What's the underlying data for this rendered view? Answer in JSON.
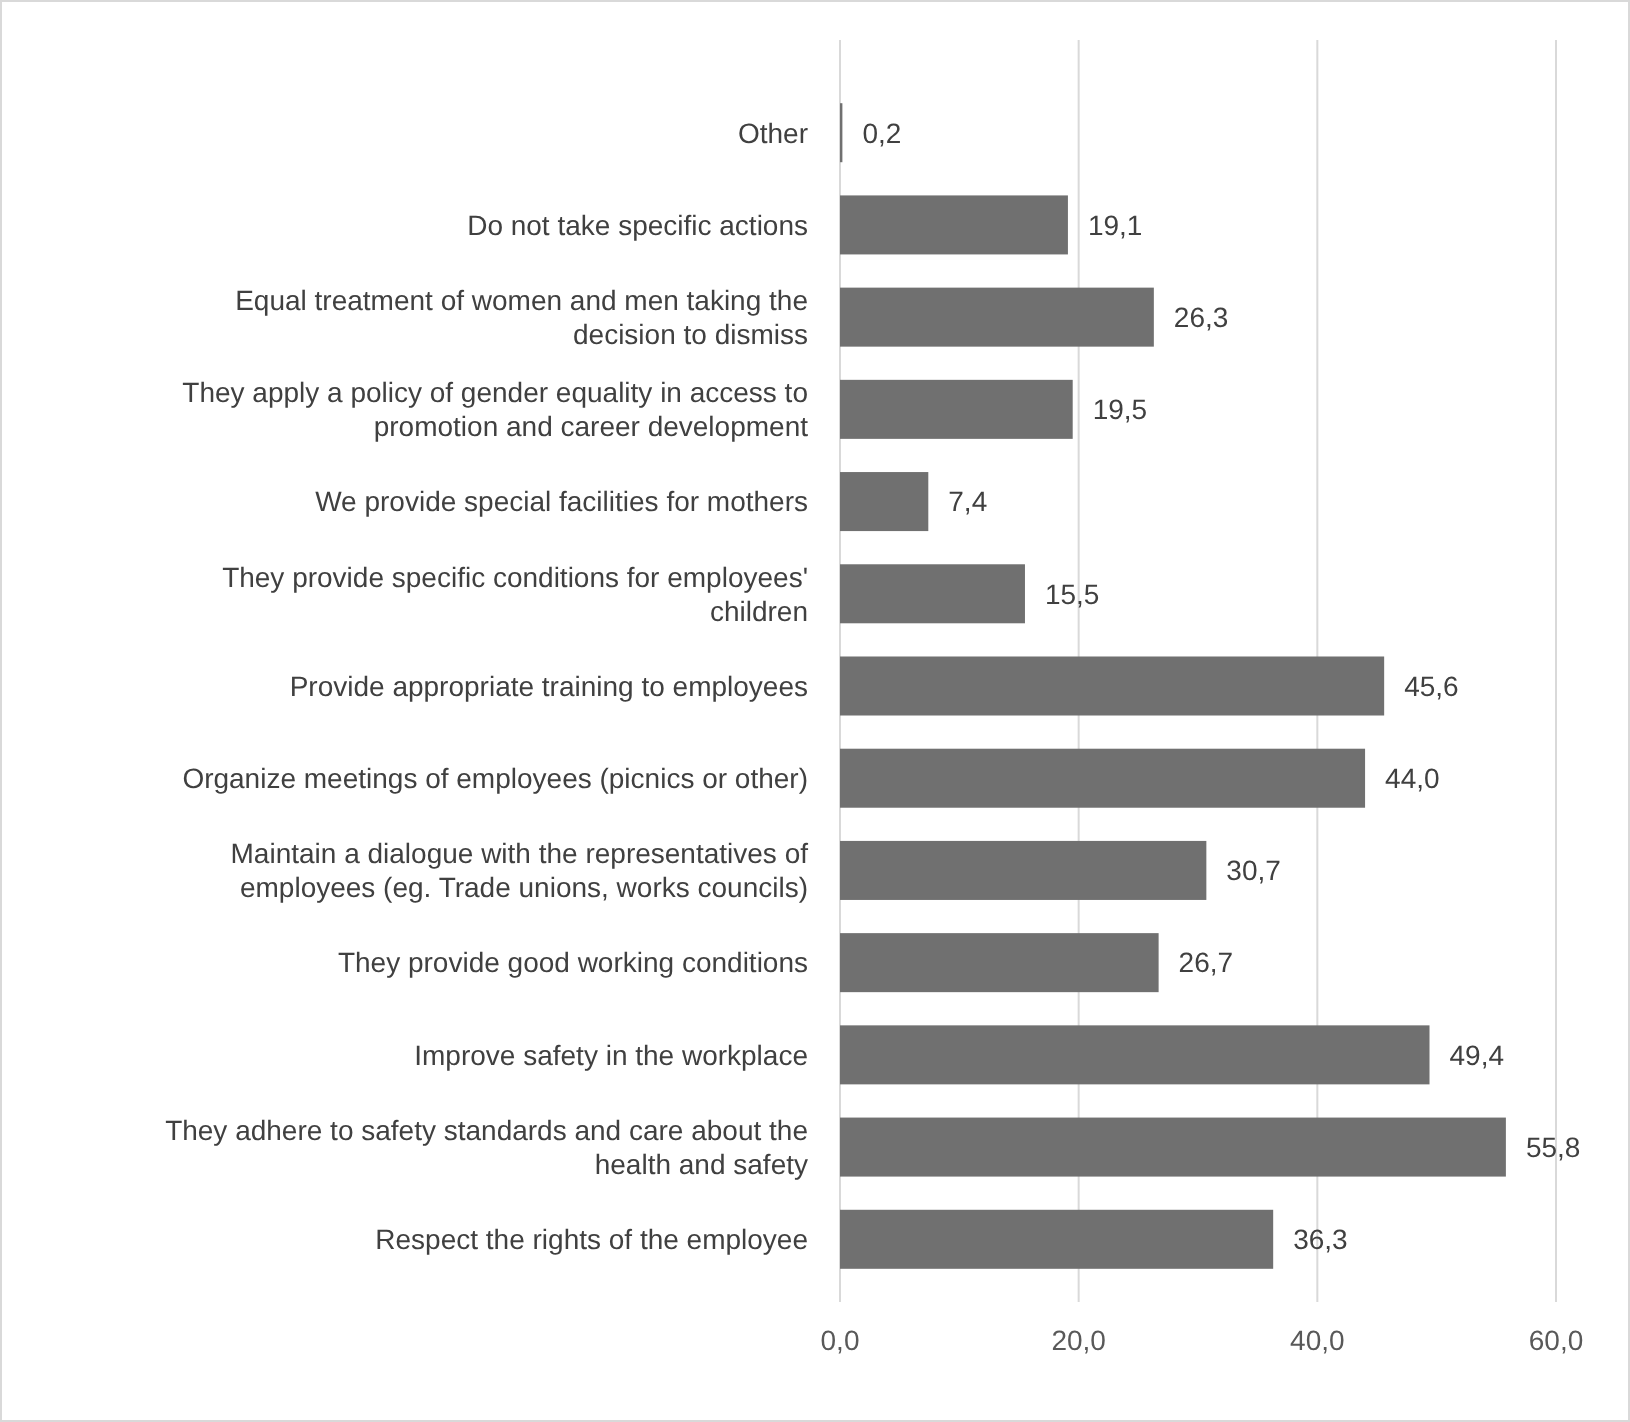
{
  "chart_data": {
    "type": "bar",
    "orientation": "horizontal",
    "categories": [
      "Other",
      "Do not take specific actions",
      "Equal treatment of women and men taking the decision to dismiss",
      "They apply a policy of gender equality in access to promotion and career development",
      "We provide special facilities for mothers",
      "They provide specific conditions for employees' children",
      "Provide appropriate training to employees",
      "Organize meetings of employees (picnics or other)",
      "Maintain a dialogue with the representatives of employees (eg. Trade unions, works councils)",
      "They provide good working conditions",
      "Improve safety in the workplace",
      "They adhere to safety standards and care about the health and safety",
      "Respect the rights of the employee"
    ],
    "values": [
      0.2,
      19.1,
      26.3,
      19.5,
      7.4,
      15.5,
      45.6,
      44.0,
      30.7,
      26.7,
      49.4,
      55.8,
      36.3
    ],
    "value_labels": [
      "0,2",
      "19,1",
      "26,3",
      "19,5",
      "7,4",
      "15,5",
      "45,6",
      "44,0",
      "30,7",
      "26,7",
      "49,4",
      "55,8",
      "36,3"
    ],
    "color": "#707070",
    "xlim": [
      0,
      60
    ],
    "xticks": [
      {
        "value": 0,
        "label": "0,0"
      },
      {
        "value": 20,
        "label": "20,0"
      },
      {
        "value": 40,
        "label": "40,0"
      },
      {
        "value": 60,
        "label": "60,0"
      }
    ],
    "grid": "x"
  }
}
